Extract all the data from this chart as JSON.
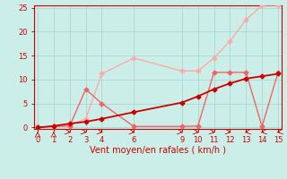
{
  "bg_color": "#cceee8",
  "grid_color": "#aad8d2",
  "xlabel": "Vent moyen/en rafales ( km/h )",
  "xlim": [
    -0.2,
    15.2
  ],
  "ylim": [
    -0.3,
    25.5
  ],
  "xticks": [
    0,
    1,
    2,
    3,
    4,
    6,
    9,
    10,
    11,
    12,
    13,
    14,
    15
  ],
  "yticks": [
    0,
    5,
    10,
    15,
    20,
    25
  ],
  "line_light": {
    "x": [
      0,
      1,
      2,
      3,
      4,
      6,
      9,
      10,
      11,
      12,
      13,
      14,
      15
    ],
    "y": [
      0,
      0.3,
      0.5,
      1.8,
      11.2,
      14.5,
      11.8,
      11.8,
      14.5,
      18.0,
      22.5,
      25.5,
      25.5
    ],
    "color": "#ffaaaa",
    "lw": 1.0,
    "markersize": 2.5
  },
  "line_mid": {
    "x": [
      0,
      1,
      2,
      3,
      4,
      6,
      9,
      10,
      11,
      12,
      13,
      14,
      15
    ],
    "y": [
      0,
      0.2,
      0.3,
      8.0,
      5.0,
      0.2,
      0.2,
      0.3,
      11.5,
      11.5,
      11.5,
      0.2,
      11.5
    ],
    "color": "#ee6666",
    "lw": 1.0,
    "markersize": 2.5
  },
  "line_dark": {
    "x": [
      0,
      1,
      2,
      3,
      4,
      6,
      9,
      10,
      11,
      12,
      13,
      14,
      15
    ],
    "y": [
      0,
      0.3,
      0.8,
      1.2,
      1.8,
      3.2,
      5.2,
      6.5,
      8.0,
      9.2,
      10.2,
      10.7,
      11.2
    ],
    "color": "#cc0000",
    "lw": 1.3,
    "markersize": 2.5
  },
  "wind_x": [
    0,
    1,
    2,
    3,
    4,
    6,
    9,
    10,
    11,
    12,
    13,
    14,
    15
  ],
  "wind_angles_deg": [
    90,
    90,
    315,
    315,
    315,
    315,
    315,
    315,
    315,
    315,
    225,
    225,
    225
  ],
  "xlabel_fontsize": 7,
  "tick_labelsize": 6
}
